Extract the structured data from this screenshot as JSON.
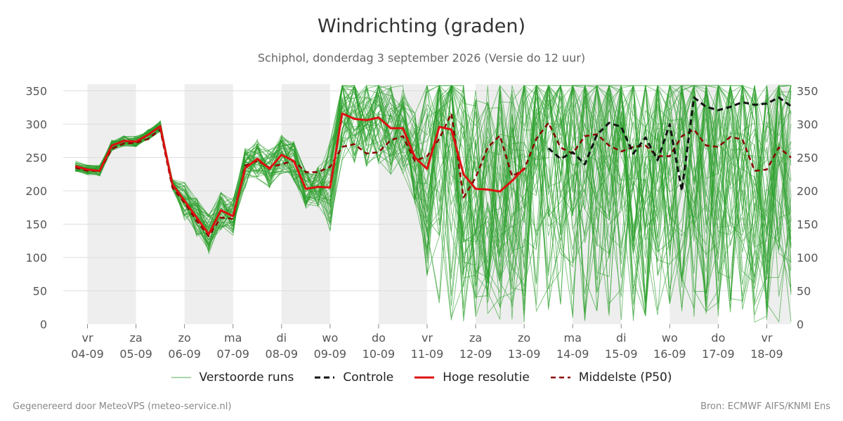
{
  "header": {
    "title": "Windrichting (graden)",
    "subtitle": "Schiphol, donderdag  3 september 2026 (Versie do 12 uur)"
  },
  "footer": {
    "left": "Gegenereerd door MeteoVPS (meteo-service.nl)",
    "right": "Bron: ECMWF AIFS/KNMI Ens"
  },
  "legend": {
    "ensemble": "Verstoorde runs",
    "control": "Controle",
    "hires": "Hoge resolutie",
    "median": "Middelste (P50)"
  },
  "colors": {
    "ensemble": "#2ca02c",
    "control": "#111111",
    "hires": "#dd1111",
    "median": "#8b0000",
    "shade": "#eeeeee",
    "grid": "#dddddd"
  },
  "chart_data": {
    "type": "line",
    "title": "Windrichting (graden)",
    "ylim": [
      0,
      360
    ],
    "yticks": [
      0,
      50,
      100,
      150,
      200,
      250,
      300,
      350
    ],
    "xlim": [
      -0.5,
      14.5
    ],
    "grid": "horizontal",
    "legend_position": "bottom",
    "x_ticks": [
      {
        "day": "vr",
        "date": "04-09"
      },
      {
        "day": "za",
        "date": "05-09"
      },
      {
        "day": "zo",
        "date": "06-09"
      },
      {
        "day": "ma",
        "date": "07-09"
      },
      {
        "day": "di",
        "date": "08-09"
      },
      {
        "day": "wo",
        "date": "09-09"
      },
      {
        "day": "do",
        "date": "10-09"
      },
      {
        "day": "vr",
        "date": "11-09"
      },
      {
        "day": "za",
        "date": "12-09"
      },
      {
        "day": "zo",
        "date": "13-09"
      },
      {
        "day": "ma",
        "date": "14-09"
      },
      {
        "day": "di",
        "date": "15-09"
      },
      {
        "day": "wo",
        "date": "16-09"
      },
      {
        "day": "do",
        "date": "17-09"
      },
      {
        "day": "vr",
        "date": "18-09"
      }
    ],
    "shaded_day_bands": [
      [
        0,
        1
      ],
      [
        2,
        3
      ],
      [
        4,
        5
      ],
      [
        6,
        7
      ],
      [
        8,
        9
      ],
      [
        10,
        11
      ],
      [
        12,
        13
      ],
      [
        14,
        14.5
      ]
    ],
    "series": [
      {
        "name": "Hoge resolutie",
        "x": [
          -0.25,
          0,
          0.25,
          0.5,
          0.75,
          1.0,
          1.25,
          1.5,
          1.75,
          2.0,
          2.25,
          2.5,
          2.75,
          3.0,
          3.25,
          3.5,
          3.75,
          4.0,
          4.25,
          4.5,
          4.75,
          5.0,
          5.25,
          5.5,
          5.75,
          6.0,
          6.25,
          6.5,
          6.75,
          7.0,
          7.25,
          7.5,
          7.75,
          8.0,
          8.25,
          8.5,
          8.75,
          9.0
        ],
        "y": [
          237,
          232,
          230,
          268,
          275,
          274,
          284,
          297,
          210,
          185,
          160,
          135,
          171,
          162,
          234,
          248,
          233,
          254,
          245,
          203,
          206,
          205,
          316,
          308,
          306,
          310,
          294,
          294,
          250,
          233,
          296,
          292,
          225,
          203,
          202,
          199,
          215,
          234
        ]
      },
      {
        "name": "Controle",
        "x": [
          9.5,
          9.75,
          10.0,
          10.25,
          10.5,
          10.75,
          11.0,
          11.25,
          11.5,
          11.75,
          12.0,
          12.25,
          12.5,
          12.75,
          13.0,
          13.25,
          13.5,
          13.75,
          14.0,
          14.25,
          14.5
        ],
        "y": [
          264,
          248,
          258,
          240,
          284,
          302,
          296,
          256,
          280,
          246,
          300,
          200,
          340,
          326,
          321,
          326,
          333,
          329,
          331,
          340,
          327
        ]
      },
      {
        "name": "Middelste (P50)",
        "x": [
          -0.25,
          0,
          0.25,
          0.5,
          0.75,
          1.0,
          1.25,
          1.5,
          1.75,
          2.0,
          2.25,
          2.5,
          2.75,
          3.0,
          3.25,
          3.5,
          3.75,
          4.0,
          4.25,
          4.5,
          4.75,
          5.0,
          5.25,
          5.5,
          5.75,
          6.0,
          6.25,
          6.5,
          6.75,
          7.0,
          7.25,
          7.5,
          7.75,
          8.0,
          8.25,
          8.5,
          8.75,
          9.0,
          9.25,
          9.5,
          9.75,
          10.0,
          10.25,
          10.5,
          10.75,
          11.0,
          11.25,
          11.5,
          11.75,
          12.0,
          12.25,
          12.5,
          12.75,
          13.0,
          13.25,
          13.5,
          13.75,
          14.0,
          14.25,
          14.5
        ],
        "y": [
          235,
          230,
          230,
          263,
          271,
          272,
          278,
          292,
          205,
          182,
          155,
          132,
          160,
          158,
          238,
          245,
          235,
          240,
          245,
          228,
          228,
          236,
          266,
          270,
          256,
          258,
          276,
          282,
          245,
          252,
          278,
          316,
          190,
          220,
          265,
          283,
          222,
          232,
          278,
          302,
          265,
          256,
          282,
          285,
          268,
          259,
          266,
          268,
          252,
          252,
          282,
          292,
          268,
          266,
          281,
          277,
          230,
          232,
          265,
          250
        ]
      }
    ]
  }
}
